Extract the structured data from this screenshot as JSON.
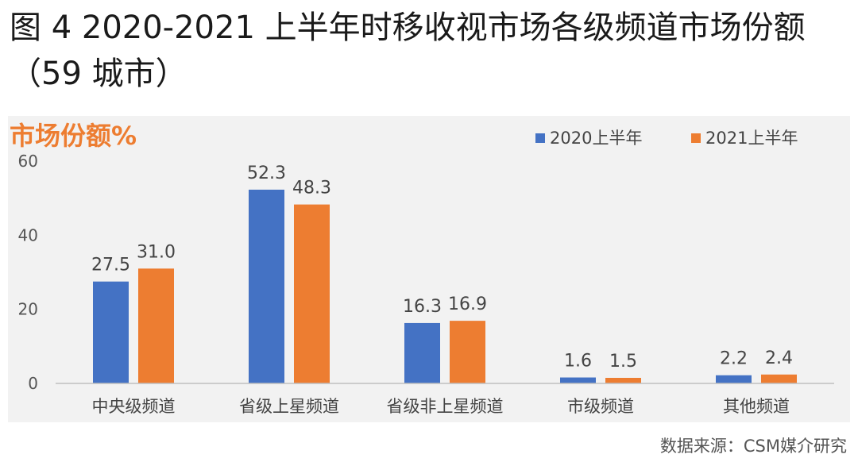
{
  "figure": {
    "title": "图 4 2020-2021 上半年时移收视市场各级频道市场份额（59 城市）",
    "source": "数据来源：CSM媒介研究"
  },
  "colors": {
    "series_2020": "#4472C4",
    "series_2021": "#ED7D31",
    "panel_bg": "#f2f2f2",
    "axis": "#bfbfbf"
  },
  "chart_data": {
    "type": "bar",
    "ylabel": "市场份额%",
    "xlabel": "",
    "ylim": [
      0,
      60
    ],
    "yticks": [
      0,
      20,
      40,
      60
    ],
    "grid": false,
    "legend_position": "top-right",
    "categories": [
      "中央级频道",
      "省级上星频道",
      "省级非上星频道",
      "市级频道",
      "其他频道"
    ],
    "series": [
      {
        "name": "2020上半年",
        "values": [
          27.5,
          52.3,
          16.3,
          1.6,
          2.2
        ]
      },
      {
        "name": "2021上半年",
        "values": [
          31.0,
          48.3,
          16.9,
          1.5,
          2.4
        ]
      }
    ]
  }
}
